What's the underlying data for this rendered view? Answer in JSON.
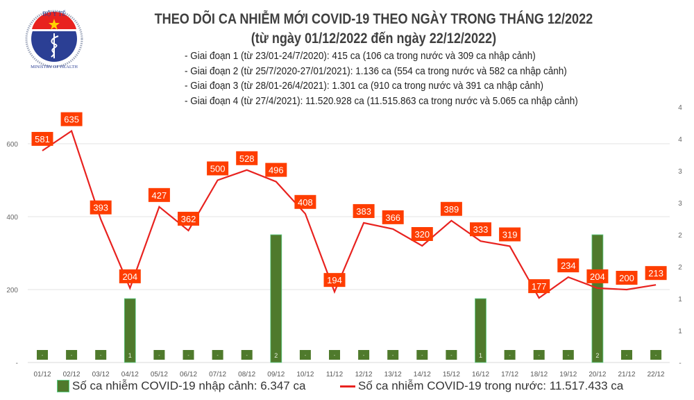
{
  "title_line1": "THEO DÕI CA NHIỄM MỚI COVID-19 THEO NGÀY TRONG THÁNG 12/2022",
  "title_line2": "(từ ngày 01/12/2022 đến ngày 22/12/2022)",
  "notes": [
    "- Giai đoạn 1 (từ 23/01-24/7/2020): 415 ca (106 ca trong nước và 309 ca nhập cảnh)",
    "- Giai đoạn 2 (từ 25/7/2020-27/01/2021): 1.136 ca (554 ca trong nước và 582 ca nhập cảnh)",
    "- Giai đoạn 3 (từ 28/01-26/4/2021): 1.301 ca (910 ca trong nước và 391 ca nhập cảnh)",
    "- Giai đoạn 4 (từ 27/4/2021): 11.520.928 ca (11.515.863 ca trong nước và 5.065 ca nhập cảnh)"
  ],
  "logo": {
    "top_text": "BỘ Y TẾ",
    "bottom_text": "MINISTRY OF HEALTH",
    "colors": {
      "blue": "#2b3f94",
      "red": "#e8221f",
      "star": "#ffd200"
    }
  },
  "chart_data": {
    "type": "bar+line",
    "categories": [
      "01/12",
      "02/12",
      "03/12",
      "04/12",
      "05/12",
      "06/12",
      "07/12",
      "08/12",
      "09/12",
      "10/12",
      "11/12",
      "12/12",
      "13/12",
      "14/12",
      "15/12",
      "16/12",
      "17/12",
      "18/12",
      "19/12",
      "20/12",
      "21/12",
      "22/12"
    ],
    "series": [
      {
        "name": "Số ca nhiễm COVID-19 nhập cảnh: 6.347 ca",
        "type": "bar",
        "axis": "right",
        "color": "#4f7a2c",
        "values": [
          0,
          0,
          0,
          1,
          0,
          0,
          0,
          0,
          2,
          0,
          0,
          0,
          0,
          0,
          0,
          1,
          0,
          0,
          0,
          2,
          0,
          0
        ],
        "labels": [
          "-",
          "-",
          "-",
          "1",
          "-",
          "-",
          "-",
          "-",
          "2",
          "-",
          "-",
          "-",
          "-",
          "-",
          "-",
          "1",
          "-",
          "-",
          "-",
          "2",
          "-",
          "-"
        ]
      },
      {
        "name": "Số ca nhiễm COVID-19 trong nước: 11.517.433 ca",
        "type": "line",
        "axis": "left",
        "color": "#e8221f",
        "label_color": "#fe3d00",
        "values": [
          581,
          635,
          393,
          204,
          427,
          362,
          500,
          528,
          496,
          408,
          194,
          383,
          366,
          320,
          389,
          333,
          319,
          177,
          234,
          204,
          200,
          213
        ]
      }
    ],
    "left_axis": {
      "range": [
        0,
        700
      ],
      "ticks": [
        0,
        200,
        400,
        600
      ],
      "tick_labels": [
        "-",
        "200",
        "400",
        "600"
      ]
    },
    "right_axis": {
      "range": [
        0,
        4
      ],
      "ticks": [
        0,
        0.5,
        1,
        1.5,
        2,
        2.5,
        3,
        3.5,
        4
      ],
      "tick_labels": [
        "-",
        "1",
        "1",
        "2",
        "2",
        "3",
        "3",
        "4",
        "4"
      ]
    },
    "grid": true,
    "legend_position": "bottom"
  }
}
